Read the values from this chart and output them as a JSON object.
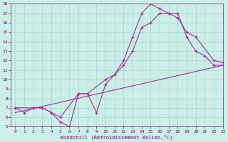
{
  "bg_color": "#cceee8",
  "grid_color": "#aaddcc",
  "line_color": "#993399",
  "line1_x": [
    0,
    1,
    2,
    3,
    4,
    5,
    6,
    7,
    8,
    9,
    10,
    11,
    12,
    13,
    14,
    15,
    16,
    17,
    18,
    19,
    20,
    21,
    22,
    23
  ],
  "line1_y": [
    7.0,
    6.5,
    7.0,
    7.0,
    6.5,
    5.5,
    5.0,
    8.5,
    8.5,
    6.5,
    9.5,
    10.5,
    12.0,
    14.5,
    17.0,
    18.0,
    17.5,
    17.0,
    17.0,
    14.5,
    13.0,
    12.5,
    11.5,
    11.5
  ],
  "line2_x": [
    0,
    2,
    3,
    4,
    5,
    7,
    8,
    10,
    11,
    12,
    13,
    14,
    15,
    16,
    17,
    18,
    19,
    20,
    22,
    23
  ],
  "line2_y": [
    7.0,
    7.0,
    7.0,
    6.5,
    6.0,
    8.5,
    8.5,
    10.0,
    10.5,
    11.5,
    13.0,
    15.5,
    16.0,
    17.0,
    17.0,
    16.5,
    15.0,
    14.5,
    12.0,
    11.8
  ],
  "line3_x": [
    0,
    23
  ],
  "line3_y": [
    6.5,
    11.5
  ],
  "xlim": [
    -0.5,
    23
  ],
  "ylim": [
    5,
    18
  ],
  "xticks": [
    0,
    1,
    2,
    3,
    4,
    5,
    6,
    7,
    8,
    9,
    10,
    11,
    12,
    13,
    14,
    15,
    16,
    17,
    18,
    19,
    20,
    21,
    22,
    23
  ],
  "yticks": [
    5,
    6,
    7,
    8,
    9,
    10,
    11,
    12,
    13,
    14,
    15,
    16,
    17,
    18
  ],
  "xlabel": "Windchill (Refroidissement éolien,°C)"
}
